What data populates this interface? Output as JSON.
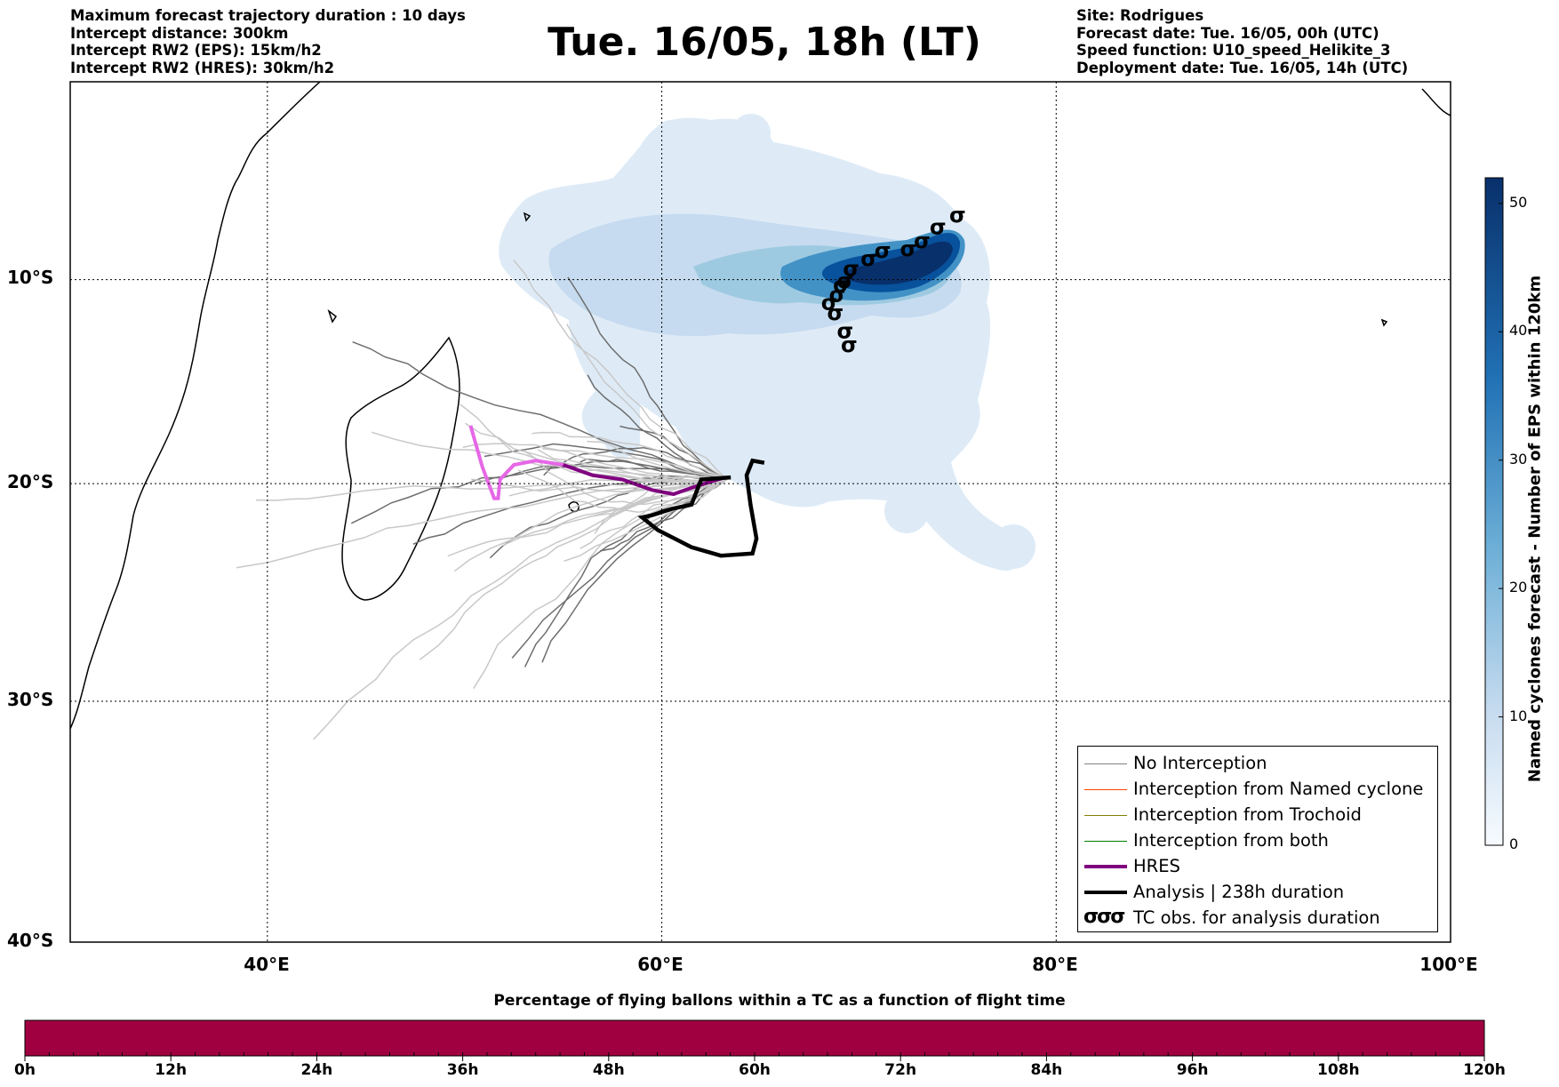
{
  "header": {
    "left_lines": [
      "Maximum forecast trajectory duration : 10 days",
      "Intercept distance: 300km",
      "Intercept RW2 (EPS):  15km/h2",
      "Intercept RW2 (HRES): 30km/h2"
    ],
    "title": "Tue. 16/05, 18h (LT)",
    "right_lines": [
      "Site: Rodrigues",
      "Forecast date: Tue. 16/05, 00h (UTC)",
      "Speed function: U10_speed_Helikite_3",
      "Deployment date: Tue. 16/05, 14h (UTC)"
    ]
  },
  "map": {
    "lon_range": [
      30,
      100
    ],
    "lat_range": [
      -40,
      0
    ],
    "lat_labels": [
      "10°S",
      "20°S",
      "30°S",
      "40°S"
    ],
    "lat_values": [
      -10,
      -20,
      -30,
      -40
    ],
    "lon_labels": [
      "40°E",
      "60°E",
      "80°E",
      "100°E"
    ],
    "lon_values": [
      40,
      60,
      80,
      100
    ],
    "colors": {
      "no_interception": "#808080",
      "named_cyclone": "#ff4500",
      "trochoid": "#808000",
      "both": "#008000",
      "hres": "#800080",
      "analysis": "#000000",
      "density_light": "#deebf7",
      "density_dark": "#08306b"
    }
  },
  "legend": {
    "items": [
      {
        "label": "No Interception"
      },
      {
        "label": "Interception from Named cyclone"
      },
      {
        "label": "Interception from Trochoid"
      },
      {
        "label": "Interception from both"
      },
      {
        "label": "HRES"
      },
      {
        "label": "Analysis | 238h duration"
      },
      {
        "label": "TC obs. for analysis duration",
        "symbol": "σσσ"
      }
    ]
  },
  "colorbar": {
    "label": "Named cyclones forecast - Number of EPS within 120km",
    "ticks": [
      "0",
      "10",
      "20",
      "30",
      "40",
      "50"
    ],
    "tick_values": [
      0,
      10,
      20,
      30,
      40,
      50
    ],
    "max": 52
  },
  "time_bar": {
    "title": "Percentage of flying ballons within a TC as a function of flight time",
    "ticks": [
      "0h",
      "12h",
      "24h",
      "36h",
      "48h",
      "60h",
      "72h",
      "84h",
      "96h",
      "108h",
      "120h"
    ],
    "color": "#a00040"
  },
  "chart_data": {
    "type": "map",
    "analysis_track": [
      [
        63.5,
        -19.7
      ],
      [
        62,
        -19.8
      ],
      [
        61.5,
        -21
      ],
      [
        60.5,
        -21.2
      ],
      [
        59.5,
        -21.5
      ],
      [
        59,
        -21.6
      ],
      [
        59.8,
        -22.2
      ],
      [
        61.5,
        -23
      ],
      [
        63,
        -23.4
      ],
      [
        64.6,
        -23.3
      ],
      [
        64.8,
        -22.6
      ],
      [
        64.5,
        -21
      ],
      [
        64.3,
        -19.6
      ],
      [
        64.6,
        -18.9
      ],
      [
        65.2,
        -19
      ]
    ],
    "hres_track": [
      [
        50.3,
        -17.2
      ],
      [
        50.9,
        -19.2
      ],
      [
        51.5,
        -20.7
      ],
      [
        51.7,
        -20.7
      ],
      [
        51.8,
        -19.8
      ],
      [
        52.5,
        -19.1
      ],
      [
        53.6,
        -18.9
      ],
      [
        55,
        -19.1
      ],
      [
        56.5,
        -19.6
      ],
      [
        58,
        -19.8
      ],
      [
        59.5,
        -20.3
      ],
      [
        60.6,
        -20.5
      ],
      [
        61.5,
        -20.2
      ],
      [
        62.5,
        -19.9
      ],
      [
        63.2,
        -19.7
      ]
    ],
    "tc_obs": [
      [
        75,
        -6.8
      ],
      [
        74,
        -7.4
      ],
      [
        73.2,
        -8.1
      ],
      [
        72.5,
        -8.5
      ],
      [
        71.2,
        -8.6
      ],
      [
        70.5,
        -9
      ],
      [
        69.6,
        -9.5
      ],
      [
        69.3,
        -10.1
      ],
      [
        69.1,
        -10.3
      ],
      [
        68.9,
        -10.8
      ],
      [
        68.5,
        -11.2
      ],
      [
        68.8,
        -11.7
      ],
      [
        69.3,
        -12.6
      ],
      [
        69.5,
        -13.3
      ]
    ]
  }
}
